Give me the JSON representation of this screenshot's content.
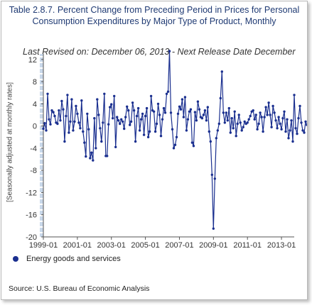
{
  "chart_data": {
    "type": "line",
    "title": "Table 2.8.7. Percent Change from Preceding Period in Prices for Personal Consumption Expenditures by Major Type of Product, Monthly",
    "subtitle": "Last Revised on: December 06, 2013 - Next Release Date December",
    "ylabel": "[Seasonally adjusted at monthly rates]",
    "xlabel": "",
    "x_ticks": [
      "1999-01",
      "2001-01",
      "2003-01",
      "2005-01",
      "2007-01",
      "2009-01",
      "2011-01",
      "2013-01"
    ],
    "y_ticks": [
      12,
      8,
      4,
      0,
      -4,
      -8,
      -12,
      -16,
      -20
    ],
    "ylim": [
      -20,
      13
    ],
    "x_start": "1999-01",
    "x_end": "2013-10",
    "grid": false,
    "legend_position": "bottom-left",
    "series": [
      {
        "name": "Energy goods and services",
        "color": "#1a2f8f",
        "values": [
          -0.5,
          0.5,
          -0.8,
          5.8,
          1.2,
          0.3,
          2.8,
          2.5,
          1.8,
          0.6,
          0.4,
          2.8,
          1.0,
          4.5,
          3.0,
          -2.8,
          1.8,
          5.6,
          -1.2,
          0.8,
          4.8,
          -0.8,
          0.8,
          3.6,
          2.2,
          0.6,
          -0.4,
          4.6,
          -1.0,
          -3.0,
          -5.5,
          2.2,
          -0.6,
          -5.8,
          -4.8,
          -6.2,
          1.4,
          -4.0,
          4.8,
          2.0,
          -0.4,
          -2.8,
          0.6,
          5.8,
          -5.4,
          -5.4,
          0.3,
          3.4,
          3.9,
          1.4,
          5.4,
          -3.8,
          1.6,
          1.0,
          0.4,
          1.2,
          0.8,
          -0.5,
          1.6,
          3.5,
          2.8,
          0.2,
          0.8,
          4.2,
          2.8,
          -2.8,
          1.8,
          3.2,
          -0.8,
          1.2,
          2.2,
          -1.6,
          1.8,
          3.2,
          -2.0,
          -1.0,
          5.4,
          2.8,
          2.6,
          -1.0,
          0.4,
          4.0,
          2.0,
          -1.8,
          1.2,
          3.2,
          2.4,
          5.8,
          6.2,
          13.5,
          2.4,
          -0.6,
          -4.0,
          -3.4,
          -2.0,
          2.2,
          3.5,
          3.0,
          4.8,
          1.6,
          5.2,
          -0.8,
          1.2,
          2.6,
          3.0,
          -3.0,
          -3.6,
          2.5,
          1.0,
          4.4,
          3.0,
          1.6,
          1.4,
          2.0,
          2.8,
          1.0,
          3.4,
          -1.0,
          -2.8,
          -8.8,
          -18.5,
          -9.5,
          -2.2,
          -0.8,
          0.4,
          5.0,
          9.8,
          2.4,
          0.6,
          2.4,
          1.0,
          3.2,
          -1.2,
          1.4,
          -0.4,
          2.6,
          -1.8,
          0.4,
          2.0,
          0.6,
          -0.8,
          -0.2,
          0.8,
          0.4,
          0.6,
          1.2,
          1.8,
          2.6,
          2.8,
          1.2,
          2.0,
          -0.6,
          0.4,
          2.4,
          1.6,
          -1.0,
          1.6,
          3.4,
          2.0,
          4.2,
          2.0,
          -0.2,
          3.6,
          2.4,
          1.0,
          -0.4,
          1.6,
          0.4,
          -0.6,
          1.4,
          2.6,
          -1.0,
          1.2,
          -2.2,
          -0.8,
          1.0,
          -2.8,
          5.6,
          -0.4,
          -1.4,
          1.4,
          3.6,
          0.6,
          -0.8,
          -1.2,
          0.8,
          0.2,
          0.4,
          1.0,
          -1.6
        ]
      }
    ]
  },
  "legend": {
    "label": "Energy goods and services"
  },
  "source": "Source: U.S. Bureau of Economic Analysis"
}
